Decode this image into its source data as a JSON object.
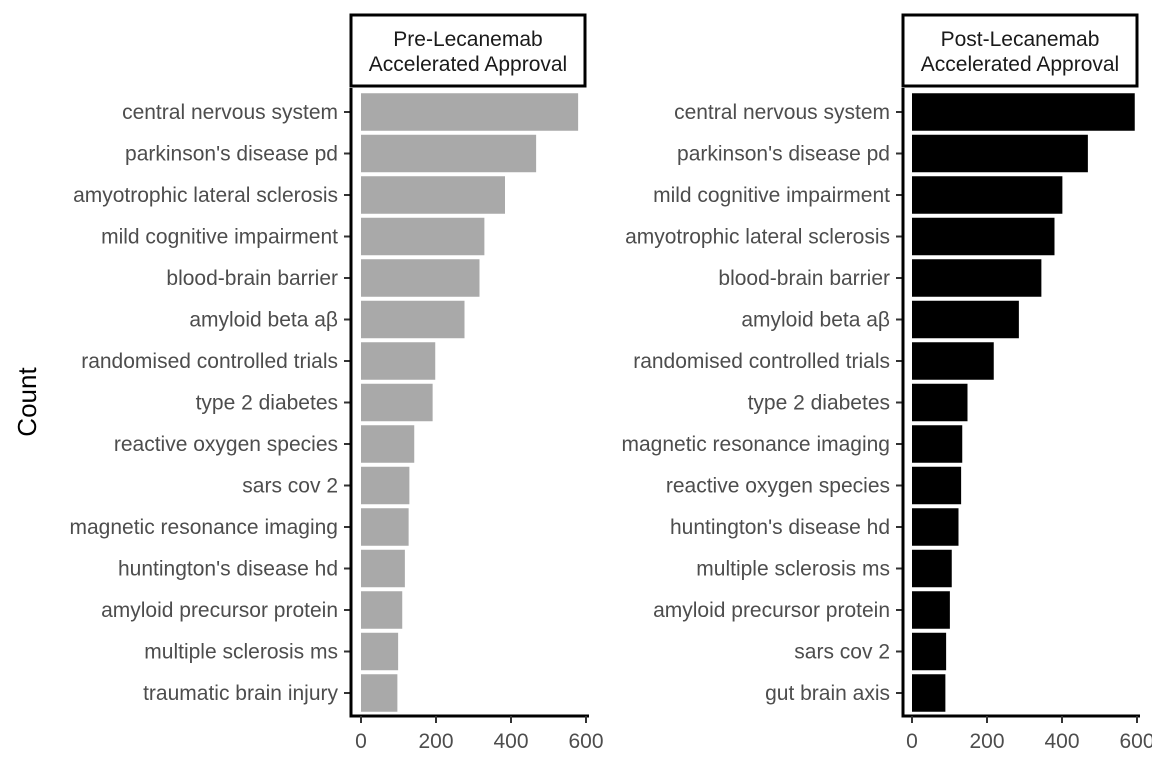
{
  "chart_data": {
    "type": "bar",
    "orientation": "horizontal",
    "ylabel": "Count",
    "xlim": [
      0,
      600
    ],
    "x_ticks": [
      "0",
      "200",
      "400",
      "600"
    ],
    "grid": false,
    "panels": [
      {
        "title_lines": [
          "Pre-Lecanemab",
          "Accelerated Approval"
        ],
        "bar_color": "#a9a9a9",
        "categories": [
          "central nervous system",
          "parkinson's disease pd",
          "amyotrophic lateral sclerosis",
          "mild cognitive impairment",
          "blood-brain barrier",
          "amyloid beta aβ",
          "randomised controlled trials",
          "type 2 diabetes",
          "reactive oxygen species",
          "sars cov 2",
          "magnetic resonance imaging",
          "huntington's disease hd",
          "amyloid precursor protein",
          "multiple sclerosis ms",
          "traumatic brain injury"
        ],
        "values": [
          579,
          467,
          384,
          329,
          316,
          276,
          198,
          191,
          142,
          129,
          127,
          117,
          110,
          99,
          97
        ]
      },
      {
        "title_lines": [
          "Post-Lecanemab",
          "Accelerated Approval"
        ],
        "bar_color": "#000000",
        "categories": [
          "central nervous system",
          "parkinson's disease pd",
          "mild cognitive impairment",
          "amyotrophic lateral sclerosis",
          "blood-brain barrier",
          "amyloid beta aβ",
          "randomised controlled trials",
          "type 2 diabetes",
          "magnetic resonance imaging",
          "reactive oxygen species",
          "huntington's disease hd",
          "multiple sclerosis ms",
          "amyloid precursor protein",
          "sars cov 2",
          "gut brain axis"
        ],
        "values": [
          594,
          469,
          401,
          380,
          345,
          285,
          218,
          148,
          134,
          131,
          124,
          106,
          101,
          91,
          89
        ]
      }
    ]
  }
}
